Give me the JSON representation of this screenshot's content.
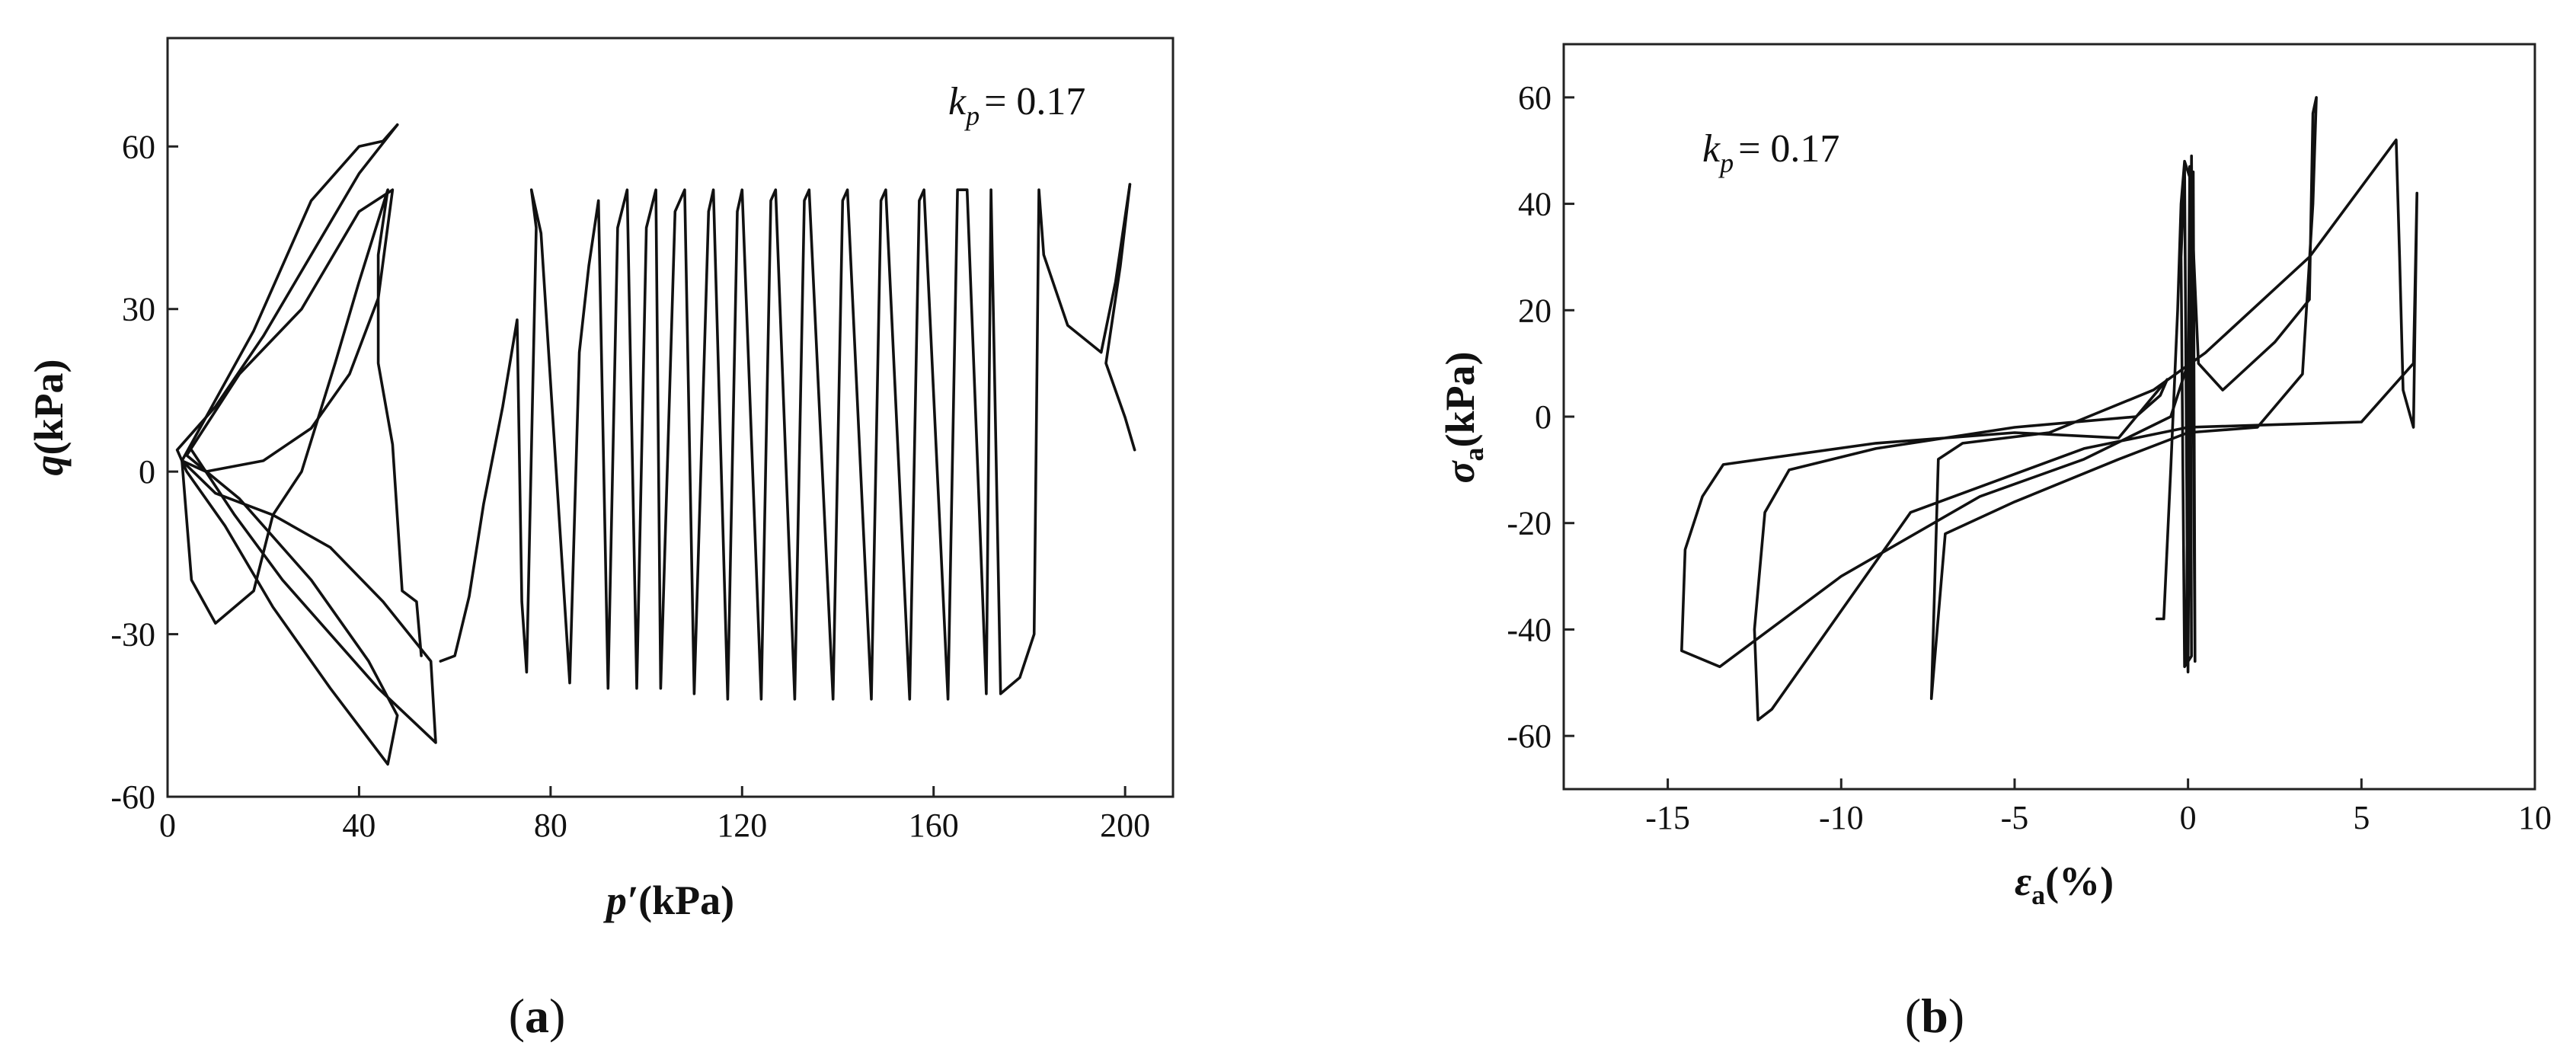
{
  "chart_data": [
    {
      "type": "line",
      "panel_label": "a",
      "xlabel_symbol": "p′",
      "xlabel_unit": "(kPa)",
      "ylabel_symbol": "q",
      "ylabel_unit": "(kPa)",
      "annotation_symbol": "k",
      "annotation_subscript": "p",
      "annotation_value": "= 0.17",
      "xlim": [
        0,
        210
      ],
      "ylim": [
        -60,
        80
      ],
      "xticks": [
        0,
        40,
        80,
        120,
        160,
        200
      ],
      "yticks": [
        -60,
        -30,
        0,
        30,
        60
      ],
      "grid": false,
      "series": [
        {
          "values": [
            [
              57,
              -35
            ],
            [
              60,
              -34
            ],
            [
              63,
              -23
            ],
            [
              66,
              -6
            ],
            [
              70,
              12
            ],
            [
              73,
              28
            ],
            [
              74,
              -24
            ],
            [
              75,
              -37
            ],
            [
              77,
              45
            ],
            [
              76,
              52
            ],
            [
              78,
              44
            ],
            [
              84,
              -39
            ],
            [
              86,
              22
            ],
            [
              88,
              38
            ],
            [
              90,
              50
            ],
            [
              92,
              -40
            ],
            [
              94,
              45
            ],
            [
              96,
              52
            ],
            [
              98,
              -40
            ],
            [
              100,
              45
            ],
            [
              102,
              52
            ],
            [
              103,
              -40
            ],
            [
              106,
              48
            ],
            [
              108,
              52
            ],
            [
              110,
              -41
            ],
            [
              113,
              48
            ],
            [
              114,
              52
            ],
            [
              117,
              -42
            ],
            [
              119,
              48
            ],
            [
              120,
              52
            ],
            [
              124,
              -42
            ],
            [
              126,
              50
            ],
            [
              127,
              52
            ],
            [
              131,
              -42
            ],
            [
              133,
              50
            ],
            [
              134,
              52
            ],
            [
              139,
              -42
            ],
            [
              141,
              50
            ],
            [
              142,
              52
            ],
            [
              147,
              -42
            ],
            [
              149,
              50
            ],
            [
              150,
              52
            ],
            [
              155,
              -42
            ],
            [
              157,
              50
            ],
            [
              158,
              52
            ],
            [
              163,
              -42
            ],
            [
              165,
              52
            ],
            [
              167,
              52
            ],
            [
              171,
              -41
            ],
            [
              172,
              52
            ],
            [
              174,
              -41
            ],
            [
              178,
              -38
            ],
            [
              181,
              -30
            ],
            [
              182,
              52
            ],
            [
              183,
              40
            ],
            [
              188,
              27
            ],
            [
              195,
              22
            ],
            [
              198,
              35
            ],
            [
              201,
              53
            ]
          ]
        },
        {
          "values": [
            [
              201,
              53
            ],
            [
              199,
              38
            ],
            [
              196,
              20
            ],
            [
              200,
              10
            ],
            [
              202,
              4
            ]
          ]
        },
        {
          "values": [
            [
              53,
              -34
            ],
            [
              52,
              -24
            ],
            [
              49,
              -22
            ],
            [
              47,
              5
            ],
            [
              44,
              20
            ],
            [
              44,
              40
            ],
            [
              46,
              52
            ],
            [
              40,
              35
            ],
            [
              35,
              20
            ],
            [
              28,
              0
            ],
            [
              22,
              -8
            ],
            [
              18,
              -22
            ],
            [
              10,
              -28
            ],
            [
              5,
              -20
            ],
            [
              3,
              2
            ],
            [
              8,
              10
            ],
            [
              18,
              26
            ],
            [
              30,
              50
            ],
            [
              40,
              60
            ],
            [
              45,
              61
            ],
            [
              48,
              64
            ]
          ]
        },
        {
          "values": [
            [
              48,
              64
            ],
            [
              40,
              55
            ],
            [
              30,
              40
            ],
            [
              20,
              25
            ],
            [
              10,
              12
            ],
            [
              2,
              4
            ],
            [
              4,
              0
            ],
            [
              12,
              -10
            ],
            [
              22,
              -25
            ],
            [
              34,
              -40
            ],
            [
              46,
              -54
            ],
            [
              48,
              -45
            ],
            [
              42,
              -35
            ],
            [
              30,
              -20
            ],
            [
              15,
              -5
            ],
            [
              4,
              3
            ]
          ]
        },
        {
          "values": [
            [
              4,
              3
            ],
            [
              15,
              18
            ],
            [
              28,
              30
            ],
            [
              40,
              48
            ],
            [
              47,
              52
            ],
            [
              44,
              32
            ],
            [
              38,
              18
            ],
            [
              30,
              8
            ],
            [
              20,
              2
            ],
            [
              8,
              0
            ],
            [
              3,
              2
            ]
          ]
        },
        {
          "values": [
            [
              3,
              2
            ],
            [
              10,
              -4
            ],
            [
              22,
              -8
            ],
            [
              34,
              -14
            ],
            [
              45,
              -24
            ],
            [
              55,
              -35
            ],
            [
              56,
              -50
            ],
            [
              44,
              -40
            ],
            [
              34,
              -30
            ],
            [
              24,
              -20
            ],
            [
              14,
              -8
            ],
            [
              5,
              4
            ]
          ]
        }
      ]
    },
    {
      "type": "line",
      "panel_label": "b",
      "xlabel_symbol": "ε",
      "xlabel_sub": "a",
      "xlabel_unit": "(%)",
      "ylabel_symbol": "σ",
      "ylabel_sub": "a",
      "ylabel_unit": "(kPa)",
      "annotation_symbol": "k",
      "annotation_subscript": "p",
      "annotation_value": "= 0.17",
      "xlim": [
        -18,
        10
      ],
      "ylim": [
        -70,
        70
      ],
      "xticks": [
        -15,
        -10,
        -5,
        0,
        5,
        10
      ],
      "yticks": [
        -60,
        -40,
        -20,
        0,
        20,
        40,
        60
      ],
      "grid": false,
      "series": [
        {
          "values": [
            [
              -0.9,
              -38
            ],
            [
              -0.7,
              -38
            ],
            [
              -0.5,
              -10
            ],
            [
              -0.3,
              20
            ],
            [
              -0.2,
              40
            ],
            [
              -0.1,
              48
            ],
            [
              0.05,
              45
            ],
            [
              0.1,
              -45
            ],
            [
              -0.1,
              -47
            ],
            [
              -0.2,
              30
            ],
            [
              -0.1,
              47
            ],
            [
              0.0,
              -48
            ],
            [
              0.1,
              49
            ],
            [
              0.2,
              -46
            ],
            [
              0.15,
              46
            ],
            [
              -0.05,
              -46
            ],
            [
              0.05,
              47
            ]
          ]
        },
        {
          "values": [
            [
              0.05,
              47
            ],
            [
              0.3,
              10
            ],
            [
              1.0,
              5
            ],
            [
              2.5,
              14
            ],
            [
              3.5,
              22
            ],
            [
              3.6,
              57
            ],
            [
              3.7,
              60
            ],
            [
              3.6,
              40
            ],
            [
              3.3,
              8
            ],
            [
              2.0,
              -2
            ],
            [
              0.0,
              -3
            ],
            [
              -2.0,
              -8
            ],
            [
              -5.0,
              -16
            ],
            [
              -7.0,
              -22
            ],
            [
              -7.4,
              -53
            ],
            [
              -7.2,
              -8
            ],
            [
              -6.5,
              -5
            ],
            [
              -4.0,
              -3
            ],
            [
              -1.0,
              5
            ],
            [
              0.5,
              12
            ],
            [
              3.5,
              30
            ],
            [
              6.0,
              52
            ],
            [
              6.1,
              30
            ],
            [
              6.2,
              5
            ],
            [
              6.5,
              -2
            ],
            [
              6.6,
              42
            ],
            [
              6.5,
              10
            ],
            [
              5.0,
              -1
            ],
            [
              0.0,
              -2
            ],
            [
              -3.0,
              -6
            ],
            [
              -8.0,
              -18
            ],
            [
              -12.0,
              -55
            ],
            [
              -12.4,
              -57
            ],
            [
              -12.5,
              -40
            ],
            [
              -12.2,
              -18
            ],
            [
              -11.5,
              -10
            ],
            [
              -9.0,
              -6
            ],
            [
              -5.0,
              -2
            ],
            [
              -1.5,
              0
            ],
            [
              -0.8,
              4
            ],
            [
              -0.6,
              7
            ],
            [
              -2.0,
              -4
            ],
            [
              -5.0,
              -3
            ],
            [
              -9.0,
              -5
            ],
            [
              -13.4,
              -9
            ],
            [
              -14.0,
              -15
            ],
            [
              -14.5,
              -25
            ],
            [
              -14.6,
              -44
            ],
            [
              -13.5,
              -47
            ],
            [
              -10.0,
              -30
            ],
            [
              -6.0,
              -15
            ],
            [
              -3.0,
              -8
            ],
            [
              -0.5,
              0
            ],
            [
              0.0,
              10
            ],
            [
              0.2,
              20
            ]
          ]
        }
      ]
    }
  ],
  "panels": {
    "a": "a",
    "b": "b"
  }
}
